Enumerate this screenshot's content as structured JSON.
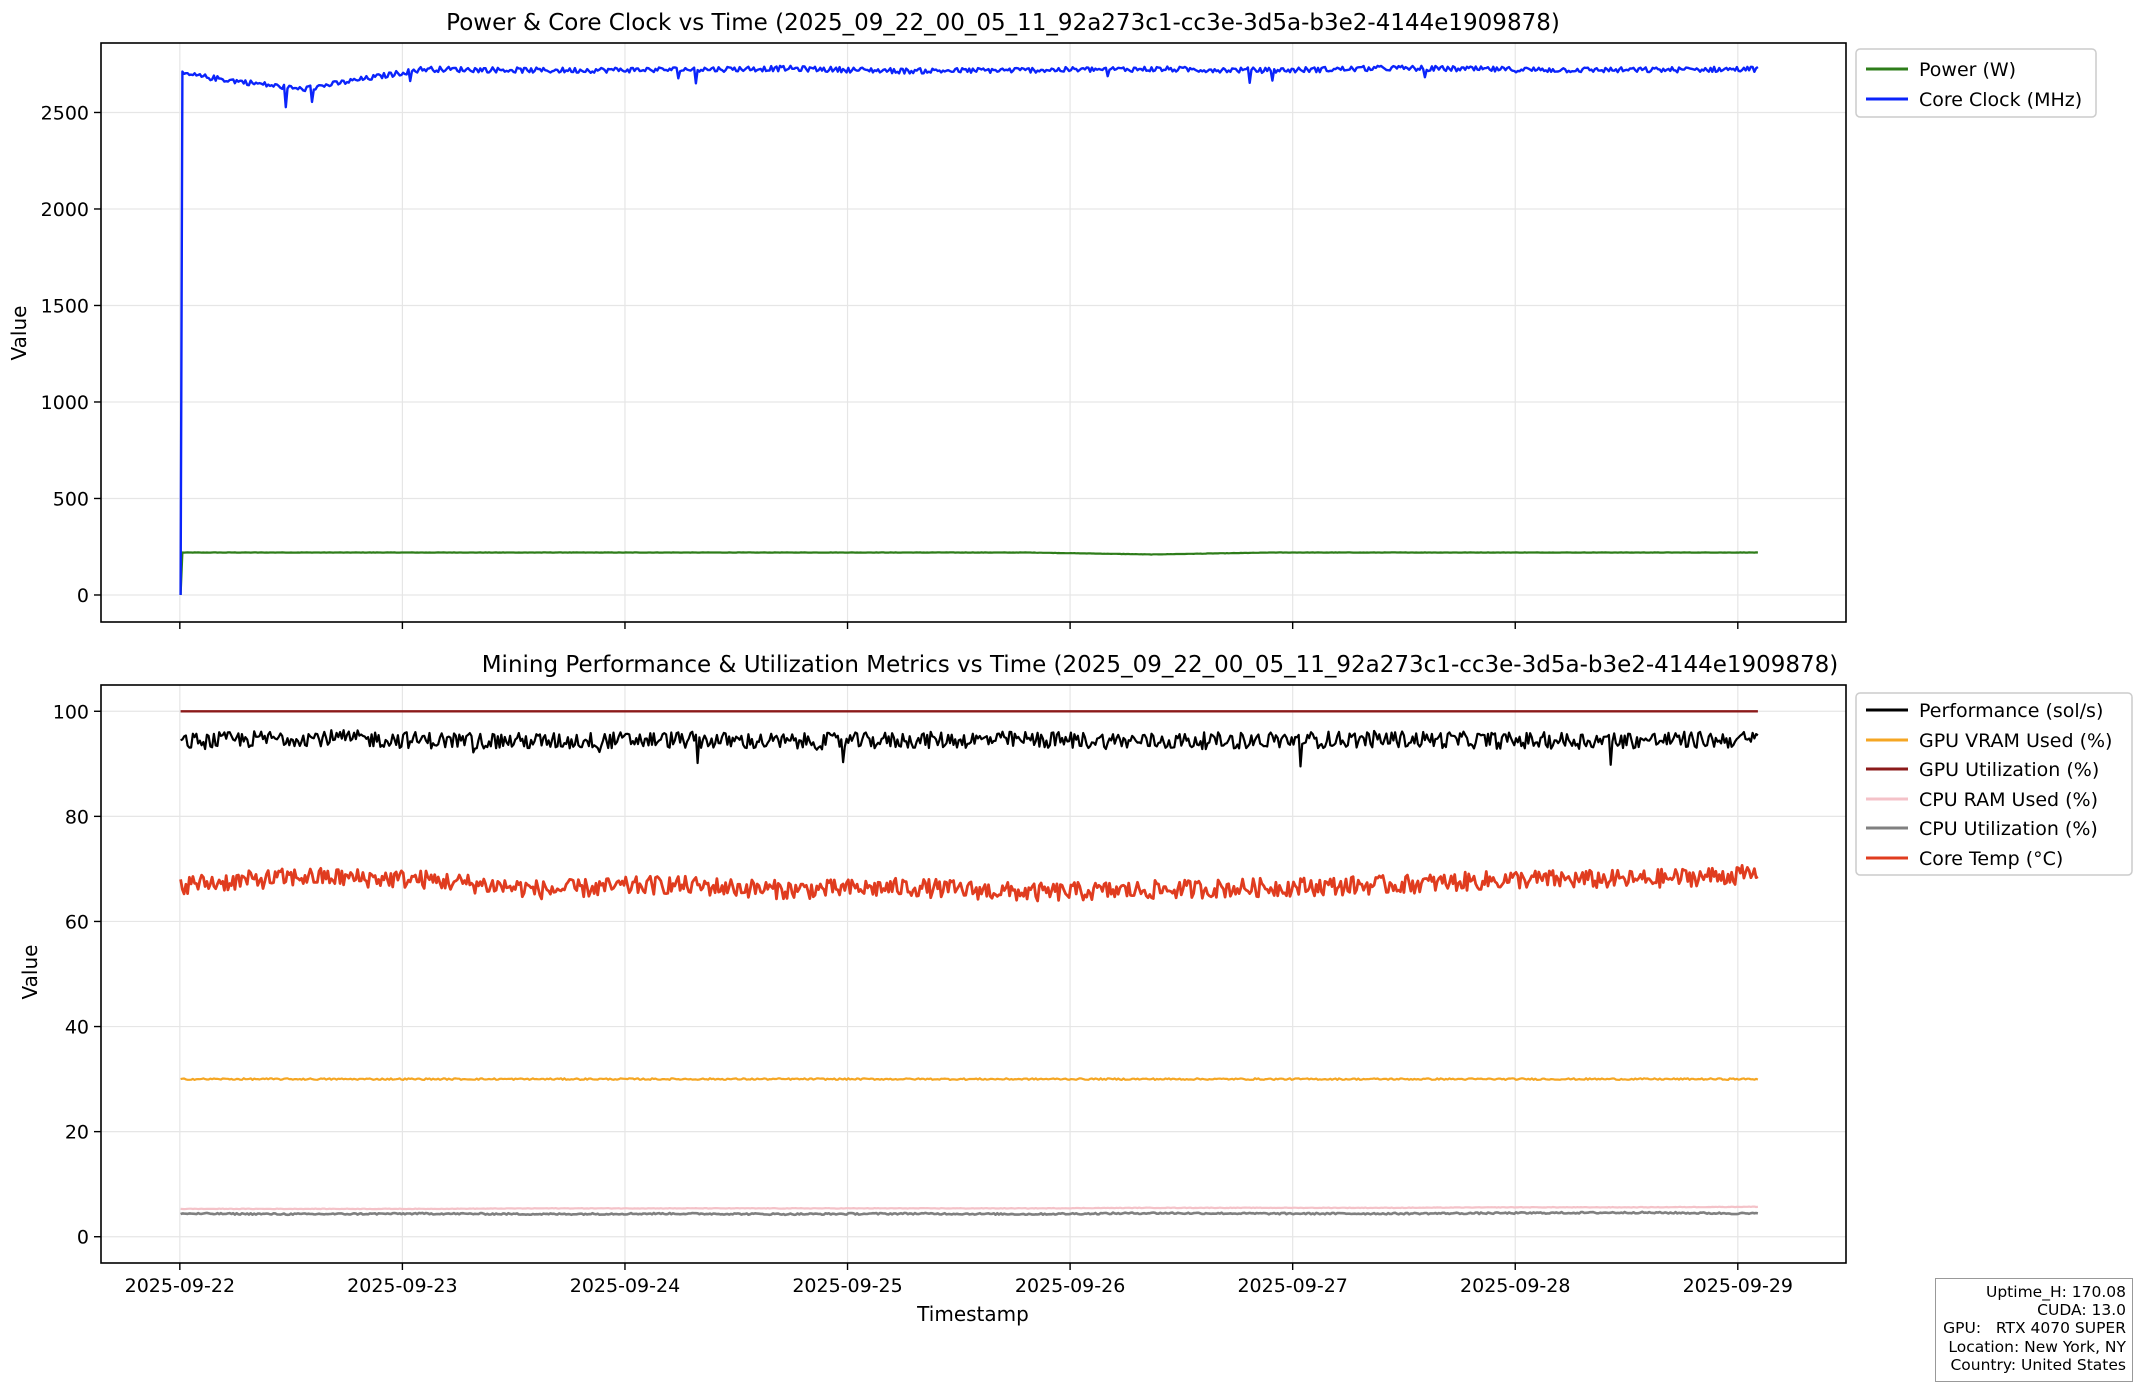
{
  "chart_data": [
    {
      "type": "line",
      "title": "Power & Core Clock vs Time (2025_09_22_00_05_11_92a273c1-cc3e-3d5a-b3e2-4144e1909878)",
      "xlabel": "",
      "ylabel": "Value",
      "xlim": [
        "2025-09-21 15:30",
        "2025-09-29 11:40"
      ],
      "ylim": [
        -140,
        2860
      ],
      "x_ticks": [
        "2025-09-22",
        "2025-09-23",
        "2025-09-24",
        "2025-09-25",
        "2025-09-26",
        "2025-09-27",
        "2025-09-28",
        "2025-09-29"
      ],
      "y_ticks": [
        0,
        500,
        1000,
        1500,
        2000,
        2500
      ],
      "grid": true,
      "legend_position": "outside upper right",
      "x_start": "2025-09-22 00:05",
      "x_end": "2025-09-29 02:10",
      "series": [
        {
          "name": "Power (W)",
          "color": "#2e7d1a",
          "values": [
            0,
            220,
            220,
            220,
            220,
            220,
            220,
            220,
            220,
            210,
            220,
            220,
            220,
            220,
            220
          ]
        },
        {
          "name": "Core Clock (MHz)",
          "color": "#0b24fb",
          "values": [
            0,
            2700,
            2620,
            2725,
            2718,
            2722,
            2728,
            2715,
            2720,
            2725,
            2718,
            2730,
            2722,
            2720,
            2725
          ]
        }
      ]
    },
    {
      "type": "line",
      "title": "Mining Performance & Utilization Metrics vs Time (2025_09_22_00_05_11_92a273c1-cc3e-3d5a-b3e2-4144e1909878)",
      "xlabel": "Timestamp",
      "ylabel": "Value",
      "xlim": [
        "2025-09-21 15:30",
        "2025-09-29 11:40"
      ],
      "ylim": [
        -5,
        105
      ],
      "x_ticks": [
        "2025-09-22",
        "2025-09-23",
        "2025-09-24",
        "2025-09-25",
        "2025-09-26",
        "2025-09-27",
        "2025-09-28",
        "2025-09-29"
      ],
      "y_ticks": [
        0,
        20,
        40,
        60,
        80,
        100
      ],
      "grid": true,
      "legend_position": "outside upper right",
      "x": [
        "2025-09-22 00:05",
        "2025-09-22 12:00",
        "2025-09-23 00:00",
        "2025-09-23 12:00",
        "2025-09-24 00:00",
        "2025-09-24 12:00",
        "2025-09-25 00:00",
        "2025-09-25 12:00",
        "2025-09-26 00:00",
        "2025-09-26 12:00",
        "2025-09-27 00:00",
        "2025-09-27 12:00",
        "2025-09-28 00:00",
        "2025-09-28 12:00",
        "2025-09-29 02:10"
      ],
      "series": [
        {
          "name": "Performance (sol/s)",
          "color": "#000000",
          "values": [
            94.5,
            94.2,
            95.0,
            94.5,
            94.3,
            94.6,
            94.2,
            94.5,
            94.6,
            94.3,
            94.5,
            94.7,
            94.4,
            94.5,
            94.6
          ]
        },
        {
          "name": "GPU VRAM Used (%)",
          "color": "#f5a623",
          "values": [
            30,
            30,
            30,
            30,
            30,
            30,
            30,
            30,
            30,
            30,
            30,
            30,
            30,
            30,
            30
          ]
        },
        {
          "name": "GPU Utilization (%)",
          "color": "#8b1a1a",
          "values": [
            100,
            100,
            100,
            100,
            100,
            100,
            100,
            100,
            100,
            100,
            100,
            100,
            100,
            100,
            100
          ]
        },
        {
          "name": "CPU RAM Used (%)",
          "color": "#f4c2c8",
          "values": [
            5.3,
            5.3,
            5.3,
            5.3,
            5.4,
            5.4,
            5.4,
            5.4,
            5.4,
            5.5,
            5.5,
            5.5,
            5.6,
            5.6,
            5.7
          ]
        },
        {
          "name": "CPU Utilization (%)",
          "color": "#808080",
          "values": [
            4.3,
            4.4,
            4.3,
            4.4,
            4.3,
            4.4,
            4.3,
            4.4,
            4.3,
            4.5,
            4.4,
            4.4,
            4.5,
            4.6,
            4.4
          ]
        },
        {
          "name": "Core Temp (°C)",
          "color": "#e03c1f",
          "values": [
            68,
            67,
            68.5,
            68,
            66,
            67,
            66,
            66.5,
            65.5,
            66,
            66.5,
            67,
            68,
            68,
            69
          ]
        }
      ]
    }
  ],
  "info_box": {
    "uptime": "Uptime_H: 170.08",
    "cuda": "CUDA: 13.0",
    "gpu": "GPU:   RTX 4070 SUPER",
    "location": "Location: New York, NY",
    "country": "Country: United States"
  }
}
